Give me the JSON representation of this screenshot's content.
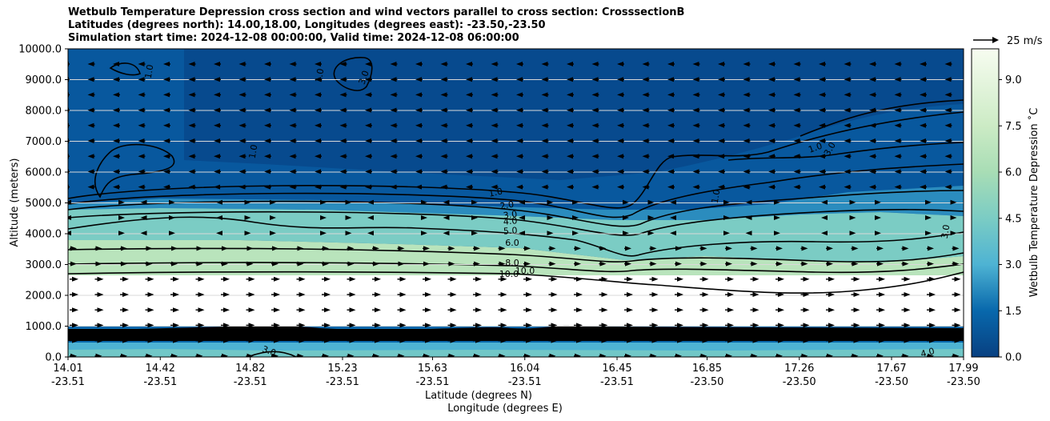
{
  "chart_data": {
    "type": "heatmap",
    "title_lines": [
      "Wetbulb Temperature Depression cross section and wind vectors parallel to cross section: CrosssectionB",
      "Latitudes (degrees north): 14.00,18.00, Longitudes (degrees east): -23.50,-23.50",
      "Simulation start time: 2024-12-08 00:00:00, Valid time: 2024-12-08 06:00:00"
    ],
    "xlabel_lines": [
      "Latitude (degrees N)",
      "Longitude (degrees E)"
    ],
    "ylabel": "Altitude (meters)",
    "x_ticks": [
      {
        "lat": "14.01",
        "lon": "-23.51"
      },
      {
        "lat": "14.42",
        "lon": "-23.51"
      },
      {
        "lat": "14.82",
        "lon": "-23.51"
      },
      {
        "lat": "15.23",
        "lon": "-23.51"
      },
      {
        "lat": "15.63",
        "lon": "-23.51"
      },
      {
        "lat": "16.04",
        "lon": "-23.51"
      },
      {
        "lat": "16.45",
        "lon": "-23.51"
      },
      {
        "lat": "16.85",
        "lon": "-23.50"
      },
      {
        "lat": "17.26",
        "lon": "-23.50"
      },
      {
        "lat": "17.67",
        "lon": "-23.50"
      },
      {
        "lat": "17.99",
        "lon": "-23.50"
      }
    ],
    "y_ticks": [
      "0.0",
      "1000.0",
      "2000.0",
      "3000.0",
      "4000.0",
      "5000.0",
      "6000.0",
      "7000.0",
      "8000.0",
      "9000.0",
      "10000.0"
    ],
    "ylim": [
      0,
      10000
    ],
    "grid": "horizontal",
    "colorbar": {
      "label": "Wetbulb Temperature Depression ˚C",
      "ticks": [
        "0.0",
        "1.5",
        "3.0",
        "4.5",
        "6.0",
        "7.5",
        "9.0"
      ],
      "range": [
        0,
        10
      ]
    },
    "wind_key": {
      "label": "25 m/s"
    },
    "contour_labels": [
      "1.0",
      "2.0",
      "3.0",
      "4.0",
      "5.0",
      "6.0",
      "8.0",
      "10.0",
      "10.0",
      "1.0",
      "1.0",
      "1.0",
      "1.0",
      "3.0",
      "3.0",
      "1.0",
      "3.0",
      "3.0",
      "4.0"
    ]
  }
}
